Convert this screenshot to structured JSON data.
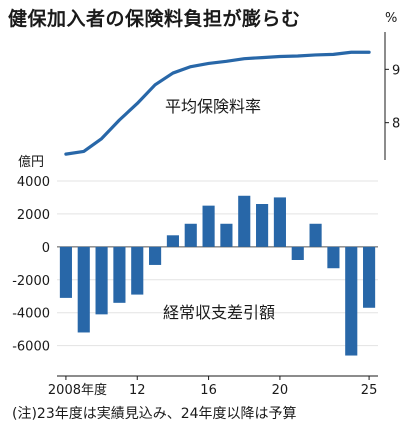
{
  "title": "健保加入者の保険料負担が膨らむ",
  "note": "(注)23年度は実績見込み、24年度以降は予算",
  "chart_data": [
    {
      "type": "line",
      "label": "平均保険料率",
      "unit": "%",
      "x": [
        2008,
        2009,
        2010,
        2011,
        2012,
        2013,
        2014,
        2015,
        2016,
        2017,
        2018,
        2019,
        2020,
        2021,
        2022,
        2023,
        2024,
        2025
      ],
      "values": [
        7.41,
        7.46,
        7.7,
        8.05,
        8.36,
        8.71,
        8.93,
        9.05,
        9.11,
        9.15,
        9.2,
        9.22,
        9.24,
        9.25,
        9.27,
        9.28,
        9.32,
        9.32
      ],
      "yticks": [
        8,
        9
      ],
      "ylim": [
        7.3,
        9.55
      ],
      "color": "#2867a8"
    },
    {
      "type": "bar",
      "label": "経常収支差引額",
      "unit": "億円",
      "x": [
        2008,
        2009,
        2010,
        2011,
        2012,
        2013,
        2014,
        2015,
        2016,
        2017,
        2018,
        2019,
        2020,
        2021,
        2022,
        2023,
        2024,
        2025
      ],
      "values": [
        -3100,
        -5200,
        -4100,
        -3400,
        -2900,
        -1100,
        700,
        1400,
        2500,
        1400,
        3100,
        2600,
        3000,
        -800,
        1400,
        -1300,
        -6600,
        -3700
      ],
      "yticks": [
        4000,
        2000,
        0,
        -2000,
        -4000,
        -6000
      ],
      "ytick_labels": [
        "4000",
        "2000",
        "0",
        "-2000",
        "-4000",
        "-6000"
      ],
      "ylim": [
        -7600,
        4300
      ],
      "xticks": [
        2008,
        2012,
        2016,
        2020,
        2025
      ],
      "xtick_labels": [
        "2008年度",
        "12",
        "16",
        "20",
        "25"
      ],
      "color": "#2867a8"
    }
  ]
}
